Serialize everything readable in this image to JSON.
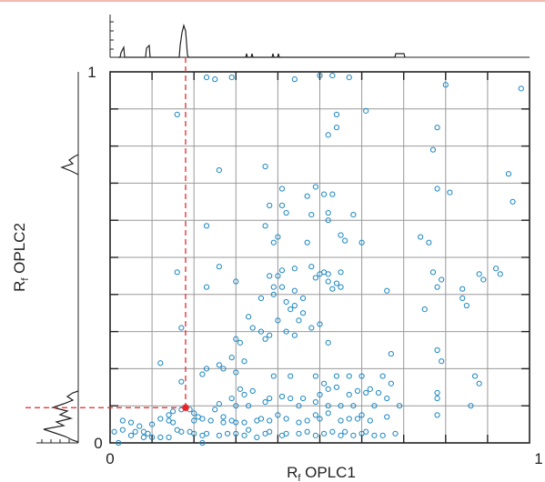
{
  "colors": {
    "top_bar": "#f2b9b3",
    "point": "#1a86c2",
    "marker": "#e8262a",
    "grid": "#999999",
    "axis": "#222222"
  },
  "chart_data": {
    "type": "scatter",
    "xlabel": {
      "main": "R",
      "sub": "f",
      "rest": " OPLC1"
    },
    "ylabel": {
      "main": "R",
      "sub": "f",
      "rest": " OPLC2"
    },
    "xlim": [
      0,
      1
    ],
    "ylim": [
      0,
      1
    ],
    "x_ticks": [
      "0",
      "1"
    ],
    "y_ticks": [
      "0",
      "1"
    ],
    "grid": true,
    "grid_step": 0.1,
    "marginal_histograms": [
      "top",
      "left"
    ],
    "highlight": {
      "x": 0.18,
      "y": 0.095,
      "color": "#e8262a",
      "guide_lines": "dashed"
    },
    "points": [
      [
        0.23,
        0.985
      ],
      [
        0.25,
        0.98
      ],
      [
        0.29,
        0.985
      ],
      [
        0.44,
        0.98
      ],
      [
        0.5,
        0.99
      ],
      [
        0.53,
        0.99
      ],
      [
        0.57,
        0.985
      ],
      [
        0.8,
        0.965
      ],
      [
        0.98,
        0.955
      ],
      [
        0.16,
        0.885
      ],
      [
        0.54,
        0.885
      ],
      [
        0.61,
        0.895
      ],
      [
        0.54,
        0.85
      ],
      [
        0.52,
        0.83
      ],
      [
        0.78,
        0.85
      ],
      [
        0.37,
        0.745
      ],
      [
        0.26,
        0.735
      ],
      [
        0.77,
        0.79
      ],
      [
        0.95,
        0.725
      ],
      [
        0.49,
        0.69
      ],
      [
        0.47,
        0.665
      ],
      [
        0.51,
        0.67
      ],
      [
        0.41,
        0.685
      ],
      [
        0.53,
        0.67
      ],
      [
        0.78,
        0.685
      ],
      [
        0.81,
        0.675
      ],
      [
        0.41,
        0.64
      ],
      [
        0.48,
        0.615
      ],
      [
        0.38,
        0.64
      ],
      [
        0.42,
        0.62
      ],
      [
        0.52,
        0.62
      ],
      [
        0.58,
        0.615
      ],
      [
        0.96,
        0.65
      ],
      [
        0.23,
        0.585
      ],
      [
        0.37,
        0.585
      ],
      [
        0.47,
        0.54
      ],
      [
        0.52,
        0.6
      ],
      [
        0.55,
        0.56
      ],
      [
        0.56,
        0.545
      ],
      [
        0.39,
        0.54
      ],
      [
        0.4,
        0.555
      ],
      [
        0.74,
        0.555
      ],
      [
        0.76,
        0.54
      ],
      [
        0.6,
        0.54
      ],
      [
        0.92,
        0.47
      ],
      [
        0.93,
        0.455
      ],
      [
        0.89,
        0.44
      ],
      [
        0.16,
        0.46
      ],
      [
        0.26,
        0.475
      ],
      [
        0.3,
        0.435
      ],
      [
        0.38,
        0.45
      ],
      [
        0.41,
        0.465
      ],
      [
        0.44,
        0.47
      ],
      [
        0.48,
        0.475
      ],
      [
        0.5,
        0.455
      ],
      [
        0.51,
        0.46
      ],
      [
        0.55,
        0.46
      ],
      [
        0.52,
        0.455
      ],
      [
        0.23,
        0.42
      ],
      [
        0.49,
        0.445
      ],
      [
        0.52,
        0.435
      ],
      [
        0.54,
        0.43
      ],
      [
        0.55,
        0.42
      ],
      [
        0.44,
        0.41
      ],
      [
        0.41,
        0.42
      ],
      [
        0.42,
        0.38
      ],
      [
        0.46,
        0.39
      ],
      [
        0.44,
        0.37
      ],
      [
        0.39,
        0.42
      ],
      [
        0.4,
        0.45
      ],
      [
        0.39,
        0.4
      ],
      [
        0.53,
        0.415
      ],
      [
        0.66,
        0.41
      ],
      [
        0.77,
        0.46
      ],
      [
        0.79,
        0.44
      ],
      [
        0.84,
        0.415
      ],
      [
        0.88,
        0.455
      ],
      [
        0.84,
        0.39
      ],
      [
        0.78,
        0.42
      ],
      [
        0.85,
        0.37
      ],
      [
        0.75,
        0.36
      ],
      [
        0.17,
        0.31
      ],
      [
        0.33,
        0.34
      ],
      [
        0.36,
        0.39
      ],
      [
        0.4,
        0.33
      ],
      [
        0.43,
        0.36
      ],
      [
        0.45,
        0.33
      ],
      [
        0.46,
        0.35
      ],
      [
        0.5,
        0.32
      ],
      [
        0.36,
        0.3
      ],
      [
        0.37,
        0.28
      ],
      [
        0.34,
        0.31
      ],
      [
        0.38,
        0.29
      ],
      [
        0.42,
        0.3
      ],
      [
        0.44,
        0.29
      ],
      [
        0.48,
        0.31
      ],
      [
        0.52,
        0.27
      ],
      [
        0.3,
        0.28
      ],
      [
        0.31,
        0.27
      ],
      [
        0.32,
        0.22
      ],
      [
        0.29,
        0.23
      ],
      [
        0.27,
        0.2
      ],
      [
        0.26,
        0.21
      ],
      [
        0.12,
        0.215
      ],
      [
        0.67,
        0.24
      ],
      [
        0.78,
        0.25
      ],
      [
        0.79,
        0.22
      ],
      [
        0.22,
        0.185
      ],
      [
        0.23,
        0.2
      ],
      [
        0.3,
        0.19
      ],
      [
        0.39,
        0.18
      ],
      [
        0.43,
        0.18
      ],
      [
        0.49,
        0.18
      ],
      [
        0.51,
        0.16
      ],
      [
        0.54,
        0.18
      ],
      [
        0.57,
        0.18
      ],
      [
        0.6,
        0.18
      ],
      [
        0.65,
        0.18
      ],
      [
        0.67,
        0.16
      ],
      [
        0.87,
        0.18
      ],
      [
        0.88,
        0.16
      ],
      [
        0.17,
        0.165
      ],
      [
        0.31,
        0.145
      ],
      [
        0.32,
        0.13
      ],
      [
        0.29,
        0.12
      ],
      [
        0.34,
        0.14
      ],
      [
        0.38,
        0.12
      ],
      [
        0.41,
        0.125
      ],
      [
        0.43,
        0.12
      ],
      [
        0.46,
        0.12
      ],
      [
        0.5,
        0.13
      ],
      [
        0.52,
        0.145
      ],
      [
        0.54,
        0.15
      ],
      [
        0.57,
        0.13
      ],
      [
        0.59,
        0.14
      ],
      [
        0.61,
        0.135
      ],
      [
        0.62,
        0.145
      ],
      [
        0.64,
        0.135
      ],
      [
        0.66,
        0.12
      ],
      [
        0.78,
        0.12
      ],
      [
        0.78,
        0.135
      ],
      [
        0.86,
        0.1
      ],
      [
        0.26,
        0.105
      ],
      [
        0.3,
        0.1
      ],
      [
        0.33,
        0.1
      ],
      [
        0.37,
        0.11
      ],
      [
        0.45,
        0.1
      ],
      [
        0.49,
        0.11
      ],
      [
        0.52,
        0.1
      ],
      [
        0.55,
        0.1
      ],
      [
        0.58,
        0.1
      ],
      [
        0.63,
        0.1
      ],
      [
        0.69,
        0.1
      ],
      [
        0.78,
        0.075
      ],
      [
        0.25,
        0.09
      ],
      [
        0.27,
        0.07
      ],
      [
        0.2,
        0.08
      ],
      [
        0.14,
        0.075
      ],
      [
        0.15,
        0.085
      ],
      [
        0.17,
        0.09
      ],
      [
        0.19,
        0.09
      ],
      [
        0.21,
        0.07
      ],
      [
        0.22,
        0.065
      ],
      [
        0.14,
        0.06
      ],
      [
        0.12,
        0.065
      ],
      [
        0.15,
        0.055
      ],
      [
        0.2,
        0.06
      ],
      [
        0.24,
        0.06
      ],
      [
        0.27,
        0.055
      ],
      [
        0.29,
        0.06
      ],
      [
        0.3,
        0.055
      ],
      [
        0.32,
        0.055
      ],
      [
        0.35,
        0.06
      ],
      [
        0.36,
        0.065
      ],
      [
        0.38,
        0.06
      ],
      [
        0.4,
        0.075
      ],
      [
        0.42,
        0.065
      ],
      [
        0.45,
        0.055
      ],
      [
        0.47,
        0.06
      ],
      [
        0.49,
        0.075
      ],
      [
        0.5,
        0.065
      ],
      [
        0.52,
        0.08
      ],
      [
        0.55,
        0.06
      ],
      [
        0.57,
        0.065
      ],
      [
        0.59,
        0.065
      ],
      [
        0.6,
        0.075
      ],
      [
        0.62,
        0.06
      ],
      [
        0.66,
        0.07
      ],
      [
        0.1,
        0.05
      ],
      [
        0.03,
        0.06
      ],
      [
        0.05,
        0.055
      ],
      [
        0.07,
        0.045
      ],
      [
        0.01,
        0.03
      ],
      [
        0.03,
        0.035
      ],
      [
        0.06,
        0.03
      ],
      [
        0.08,
        0.03
      ],
      [
        0.09,
        0.025
      ],
      [
        0.1,
        0.015
      ],
      [
        0.12,
        0.015
      ],
      [
        0.05,
        0.02
      ],
      [
        0.08,
        0.015
      ],
      [
        0.14,
        0.015
      ],
      [
        0.16,
        0.035
      ],
      [
        0.17,
        0.03
      ],
      [
        0.19,
        0.03
      ],
      [
        0.2,
        0.025
      ],
      [
        0.22,
        0.02
      ],
      [
        0.23,
        0.025
      ],
      [
        0.26,
        0.02
      ],
      [
        0.28,
        0.025
      ],
      [
        0.3,
        0.025
      ],
      [
        0.32,
        0.02
      ],
      [
        0.33,
        0.035
      ],
      [
        0.35,
        0.015
      ],
      [
        0.37,
        0.025
      ],
      [
        0.38,
        0.03
      ],
      [
        0.41,
        0.02
      ],
      [
        0.42,
        0.025
      ],
      [
        0.45,
        0.025
      ],
      [
        0.47,
        0.03
      ],
      [
        0.49,
        0.02
      ],
      [
        0.51,
        0.025
      ],
      [
        0.53,
        0.03
      ],
      [
        0.55,
        0.02
      ],
      [
        0.56,
        0.03
      ],
      [
        0.58,
        0.02
      ],
      [
        0.6,
        0.025
      ],
      [
        0.61,
        0.03
      ],
      [
        0.63,
        0.02
      ],
      [
        0.65,
        0.02
      ],
      [
        0.68,
        0.025
      ],
      [
        0.02,
        0.0
      ],
      [
        0.22,
        0.0
      ]
    ]
  }
}
